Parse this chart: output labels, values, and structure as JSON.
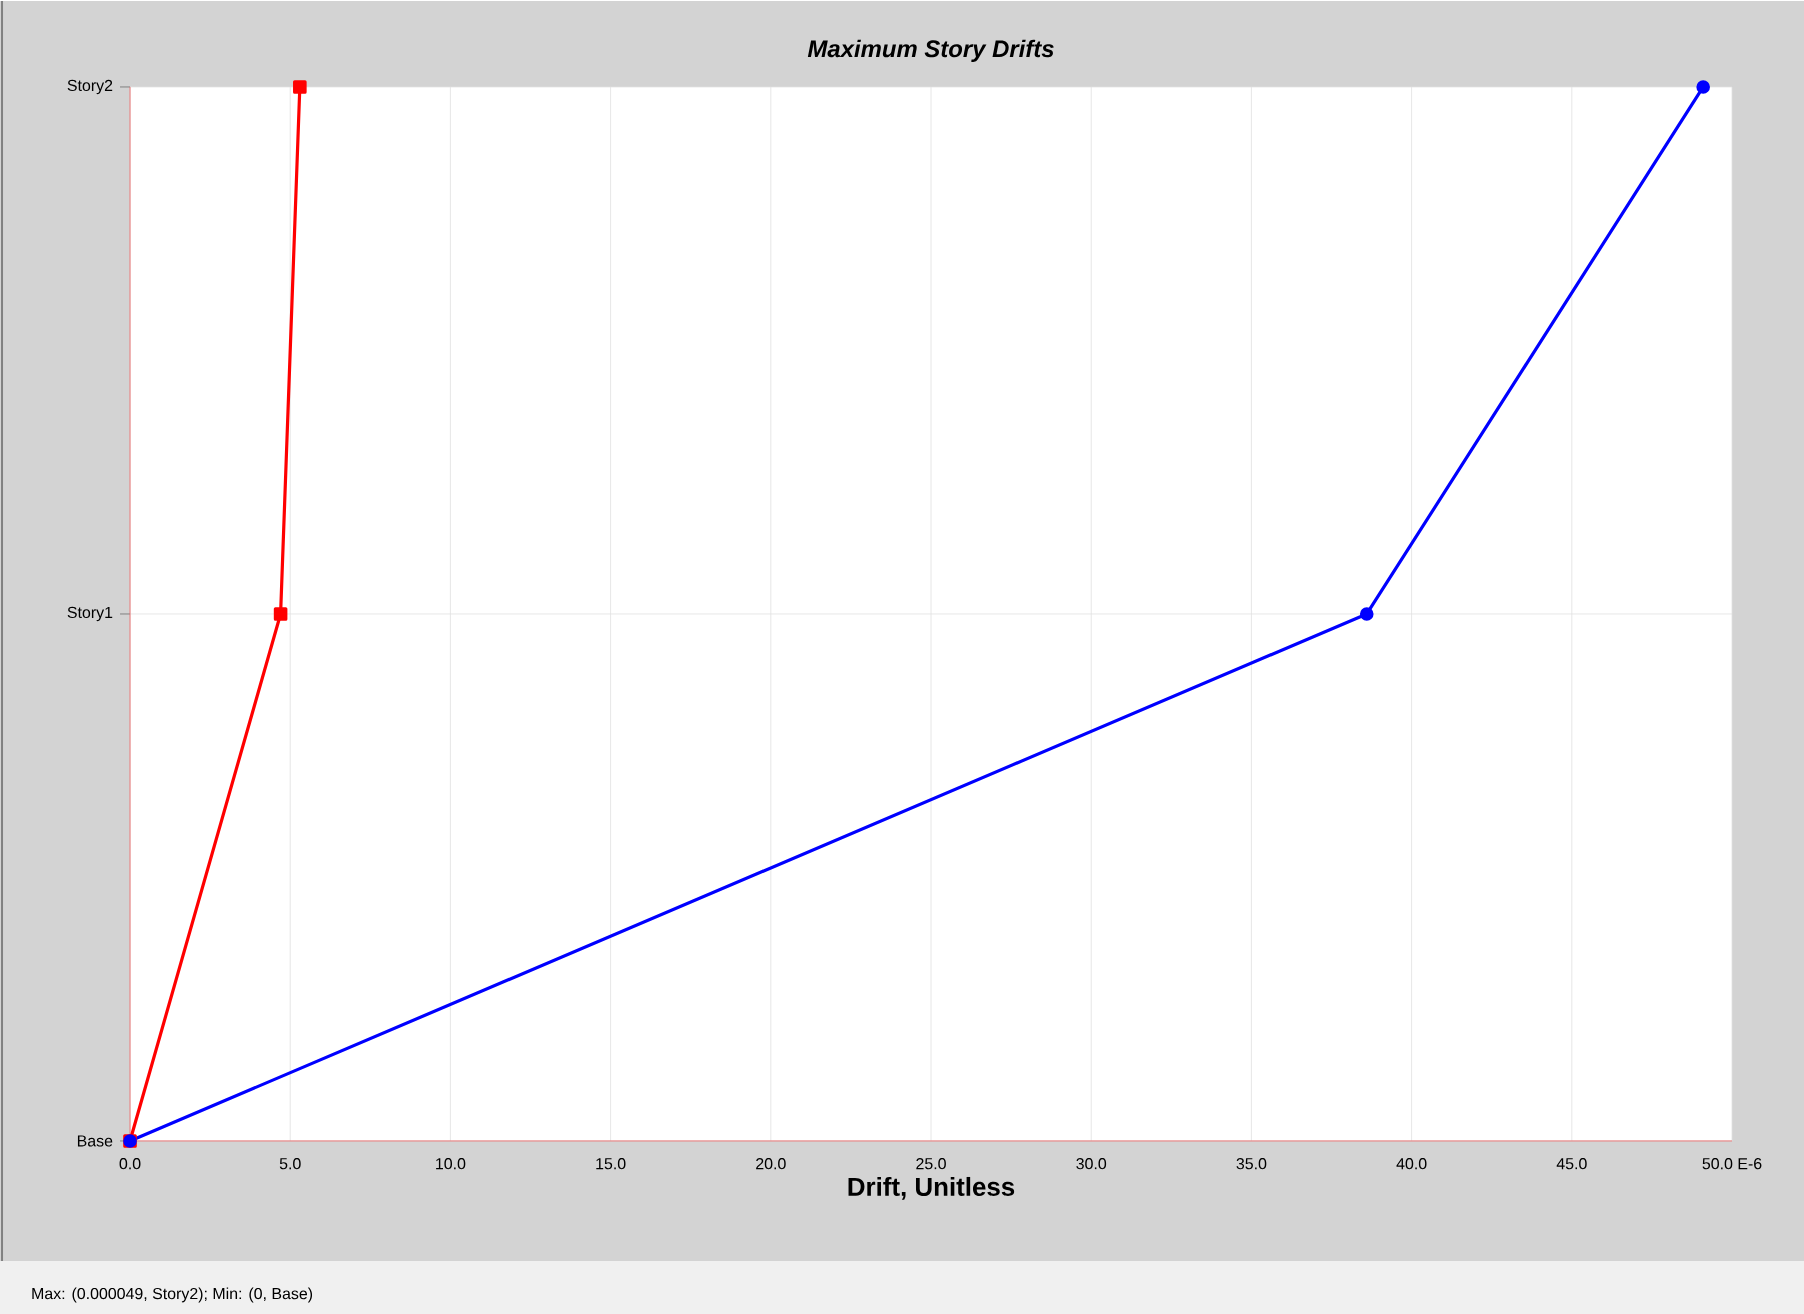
{
  "chart_data": {
    "type": "line",
    "title": "Maximum Story Drifts",
    "xlabel": "Drift, Unitless",
    "orientation": "horizontal",
    "categories": [
      "Story2",
      "Story1",
      "Base"
    ],
    "series": [
      {
        "color": "#ff0000",
        "marker": "square",
        "values": [
          5.3,
          4.7,
          0
        ]
      },
      {
        "color": "#0000ff",
        "marker": "circle",
        "values": [
          49.1,
          38.6,
          0
        ]
      }
    ],
    "xlim": [
      0,
      50
    ],
    "xticks": [
      {
        "value": 0,
        "label": "0.0"
      },
      {
        "value": 5,
        "label": "5.0"
      },
      {
        "value": 10,
        "label": "10.0"
      },
      {
        "value": 15,
        "label": "15.0"
      },
      {
        "value": 20,
        "label": "20.0"
      },
      {
        "value": 25,
        "label": "25.0"
      },
      {
        "value": 30,
        "label": "30.0"
      },
      {
        "value": 35,
        "label": "35.0"
      },
      {
        "value": 40,
        "label": "40.0"
      },
      {
        "value": 45,
        "label": "45.0"
      },
      {
        "value": 50,
        "label": "50.0 E-6"
      }
    ],
    "grid": true,
    "annotations": [
      "Max: (0.000049, Story2);   Min: (0, Base)"
    ]
  }
}
